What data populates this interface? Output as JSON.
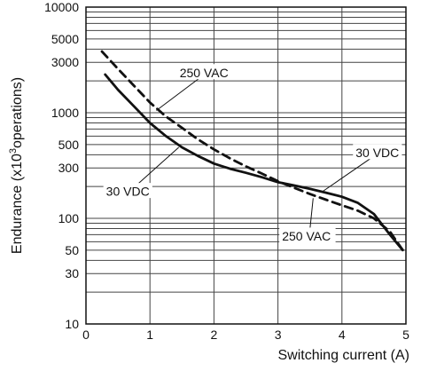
{
  "chart_data": {
    "type": "line",
    "title": "",
    "xlabel": "Switching current (A)",
    "ylabel_main": "Endurance (x10",
    "ylabel_sup": "3",
    "ylabel_tail": "operations)",
    "xlim": [
      0,
      5
    ],
    "ylim": [
      10,
      10000
    ],
    "y_scale": "log",
    "grid": true,
    "x_ticks": [
      0,
      1,
      2,
      3,
      4,
      5
    ],
    "x_tick_labels": [
      "0",
      "1",
      "2",
      "3",
      "4",
      "5"
    ],
    "y_ticks": [
      10,
      30,
      50,
      100,
      300,
      500,
      1000,
      3000,
      5000,
      10000
    ],
    "y_tick_labels": [
      "10",
      "30",
      "50",
      "100",
      "300",
      "500",
      "1000",
      "3000",
      "5000",
      "10000"
    ],
    "series": [
      {
        "name": "250 VAC",
        "style": "dashed",
        "color": "#111111",
        "x": [
          0.25,
          0.5,
          0.75,
          1.0,
          1.25,
          1.5,
          1.75,
          2.0,
          2.25,
          2.5,
          2.75,
          3.0,
          3.25,
          3.5,
          3.75,
          4.0,
          4.25,
          4.5,
          4.75,
          4.95
        ],
        "y": [
          3800,
          2600,
          1800,
          1250,
          920,
          720,
          560,
          450,
          370,
          310,
          265,
          225,
          195,
          170,
          150,
          133,
          118,
          100,
          75,
          50
        ]
      },
      {
        "name": "30 VDC",
        "style": "solid",
        "color": "#111111",
        "x": [
          0.3,
          0.5,
          0.75,
          1.0,
          1.25,
          1.5,
          1.75,
          2.0,
          2.25,
          2.5,
          2.75,
          3.0,
          3.25,
          3.5,
          3.75,
          4.0,
          4.25,
          4.5,
          4.75,
          4.95
        ],
        "y": [
          2300,
          1650,
          1150,
          800,
          600,
          470,
          390,
          330,
          295,
          270,
          245,
          220,
          205,
          190,
          175,
          160,
          140,
          110,
          70,
          50
        ]
      }
    ],
    "annotations": [
      {
        "text": "250 VAC",
        "x": 1.45,
        "y": 2400,
        "to_x": 1.1,
        "to_y": 1050
      },
      {
        "text": "30 VDC",
        "x": 4.2,
        "y": 420,
        "to_x": 3.7,
        "to_y": 180
      },
      {
        "text": "30 VDC",
        "x": 0.3,
        "y": 180,
        "to_x": 1.45,
        "to_y": 470
      },
      {
        "text": "250 VAC",
        "x": 3.05,
        "y": 68,
        "to_x": 3.55,
        "to_y": 155
      }
    ]
  }
}
